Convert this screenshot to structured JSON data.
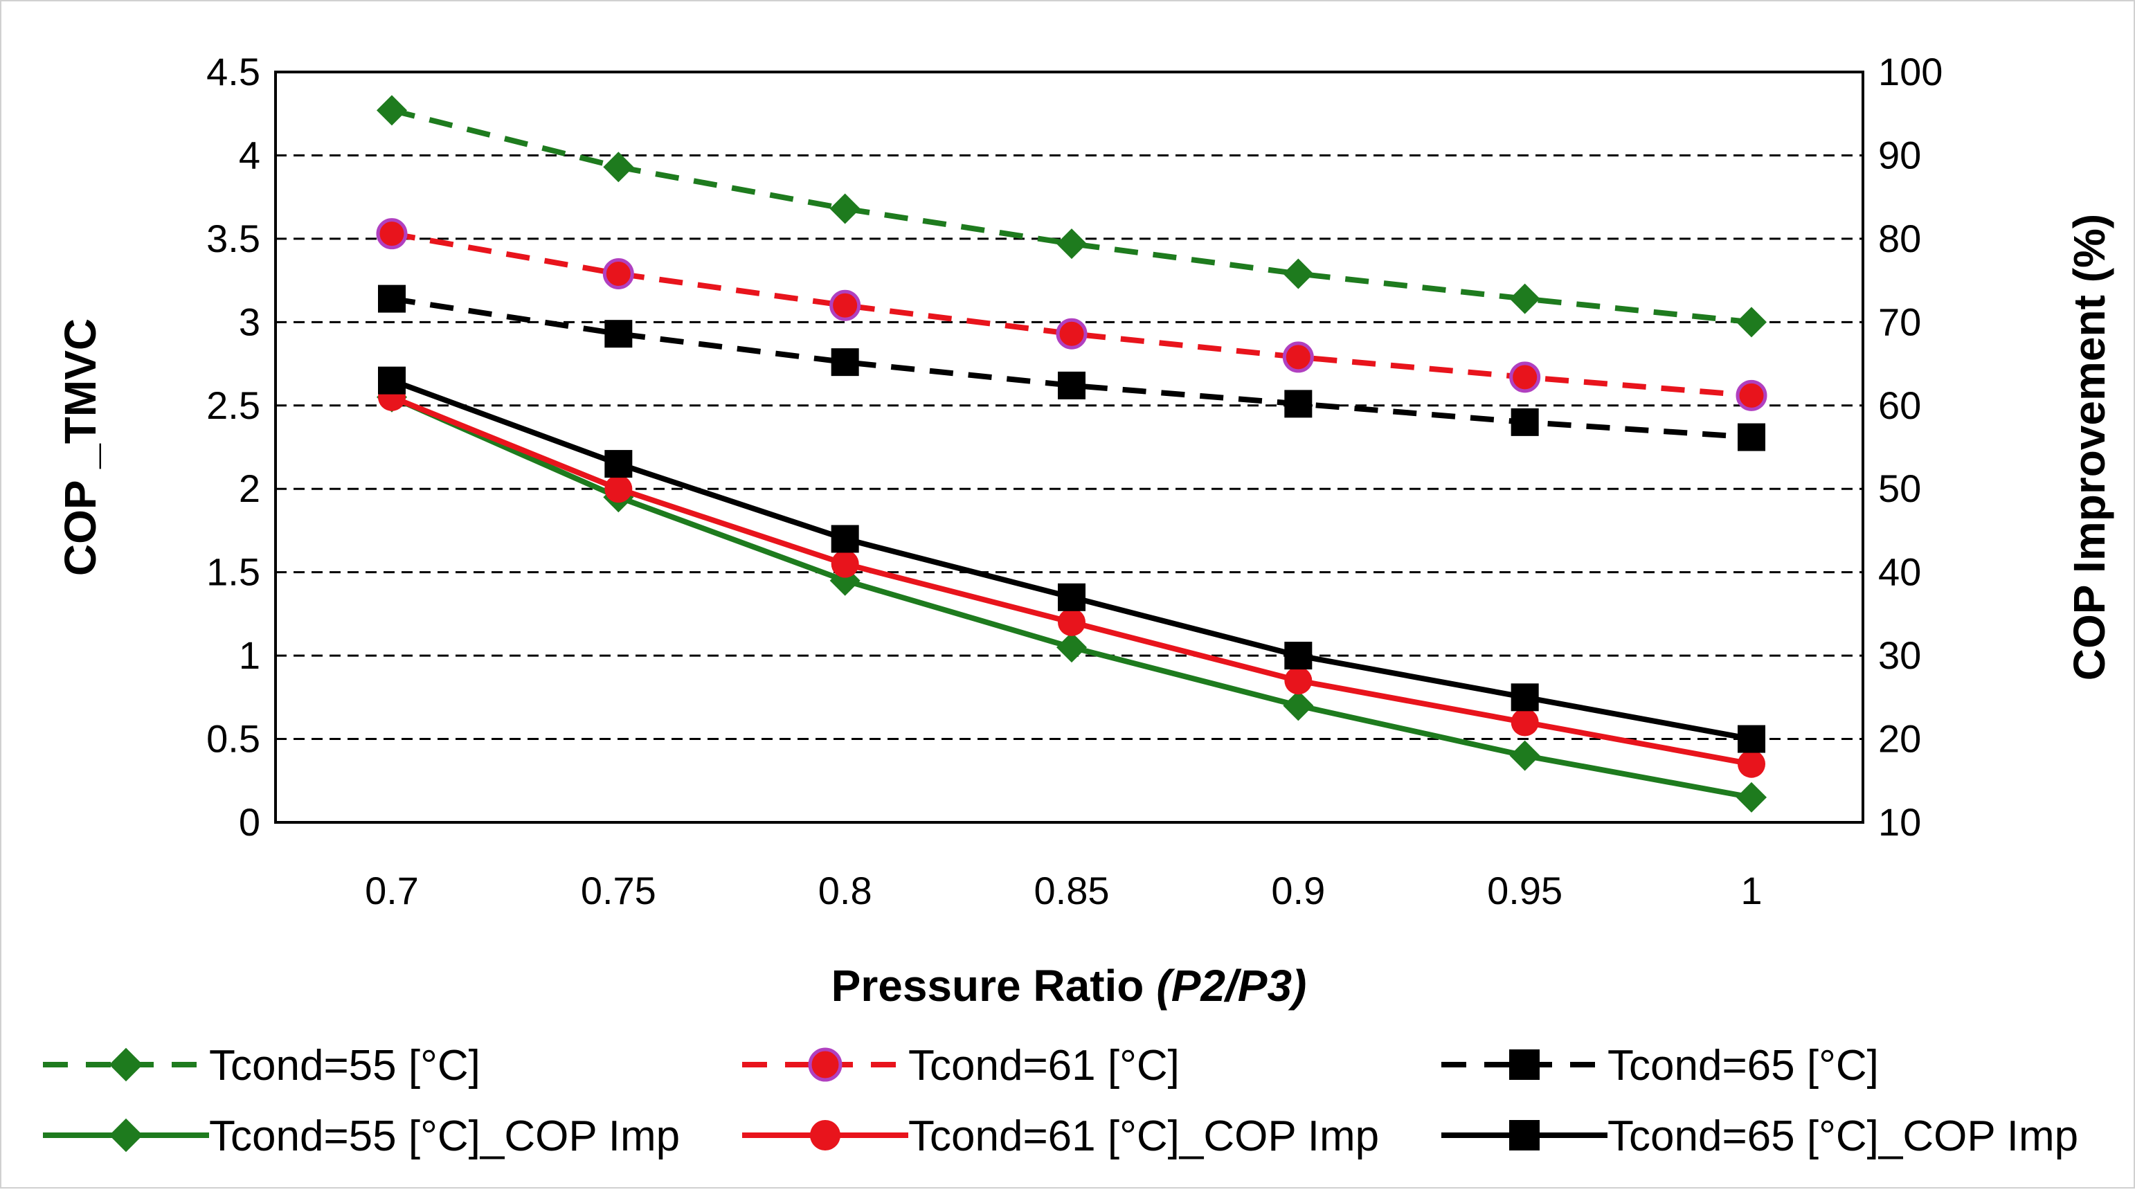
{
  "chart_data": {
    "type": "line",
    "title": "",
    "x": [
      0.7,
      0.75,
      0.8,
      0.85,
      0.9,
      0.95,
      1
    ],
    "x_tick_labels": [
      "0.7",
      "0.75",
      "0.8",
      "0.85",
      "0.9",
      "0.95",
      "1"
    ],
    "xlabel": "Pressure Ratio",
    "xlabel_italic": "(P2/P3)",
    "ylabel": "COP _TMVC",
    "ylim": [
      0,
      4.5
    ],
    "y_ticks": [
      "0",
      "0.5",
      "1",
      "1.5",
      "2",
      "2.5",
      "3",
      "3.5",
      "4",
      "4.5"
    ],
    "y2label": "COP Improvement (%)",
    "y2lim": [
      10,
      100
    ],
    "y2_ticks": [
      "10",
      "20",
      "30",
      "40",
      "50",
      "60",
      "70",
      "80",
      "90",
      "100"
    ],
    "grid": "horizontal dashed",
    "legend_position": "bottom",
    "series": [
      {
        "name": "Tcond=55 [°C]",
        "axis": "left",
        "style": "dashed",
        "marker": "diamond",
        "color": "#1e7b1e",
        "values": [
          4.27,
          3.93,
          3.68,
          3.47,
          3.29,
          3.14,
          3.0
        ]
      },
      {
        "name": "Tcond=61 [°C]",
        "axis": "left",
        "style": "dashed",
        "marker": "circle",
        "color": "#e8141c",
        "marker_edge": "#b040c0",
        "values": [
          3.53,
          3.29,
          3.1,
          2.93,
          2.79,
          2.67,
          2.56
        ]
      },
      {
        "name": "Tcond=65 [°C]",
        "axis": "left",
        "style": "dashed",
        "marker": "square",
        "color": "#000000",
        "values": [
          3.14,
          2.93,
          2.76,
          2.62,
          2.51,
          2.4,
          2.31
        ]
      },
      {
        "name": "Tcond=55 [°C]_COP Imp",
        "axis": "right",
        "style": "solid",
        "marker": "diamond",
        "color": "#1e7b1e",
        "values": [
          61,
          49,
          39,
          31,
          24,
          18,
          13
        ]
      },
      {
        "name": "Tcond=61 [°C]_COP Imp",
        "axis": "right",
        "style": "solid",
        "marker": "circle",
        "color": "#e8141c",
        "values": [
          61,
          50,
          41,
          34,
          27,
          22,
          17
        ]
      },
      {
        "name": "Tcond=65 [°C]_COP Imp",
        "axis": "right",
        "style": "solid",
        "marker": "square",
        "color": "#000000",
        "values": [
          63,
          53,
          44,
          37,
          30,
          25,
          20
        ]
      }
    ]
  }
}
